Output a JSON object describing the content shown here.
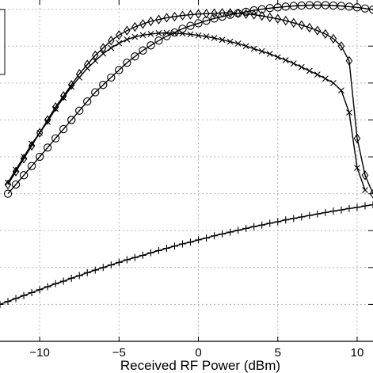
{
  "chart_data": {
    "type": "line",
    "xlabel": "Received RF Power (dBm)",
    "ylabel": "",
    "xlim": [
      -12.5,
      11
    ],
    "ylim": [
      0,
      9.25
    ],
    "x_ticks": [
      -10,
      -5,
      0,
      5,
      10
    ],
    "x_tick_labels": [
      "−10",
      "−5",
      "0",
      "5",
      "10"
    ],
    "y_gridlines": [
      1,
      2,
      3,
      4,
      5,
      6,
      7,
      8,
      9
    ],
    "grid": true,
    "legend_placement": "top-left",
    "series": [
      {
        "marker": "circle",
        "x": [
          -12,
          -11.5,
          -11,
          -10.5,
          -10,
          -9.5,
          -9,
          -8.5,
          -8,
          -7.5,
          -7,
          -6.5,
          -6,
          -5.5,
          -5,
          -4.5,
          -4,
          -3.5,
          -3,
          -2.5,
          -2,
          -1.5,
          -1,
          -0.5,
          0,
          0.5,
          1,
          1.5,
          2,
          2.5,
          3,
          3.5,
          4,
          4.5,
          5,
          5.5,
          6,
          6.5,
          7,
          7.5,
          8,
          8.5,
          9,
          9.5,
          10,
          10.5,
          11
        ],
        "values": [
          4.0,
          4.25,
          4.5,
          4.75,
          5.0,
          5.25,
          5.5,
          5.75,
          6.0,
          6.25,
          6.5,
          6.75,
          6.95,
          7.15,
          7.35,
          7.55,
          7.72,
          7.88,
          8.02,
          8.15,
          8.27,
          8.37,
          8.47,
          8.55,
          8.62,
          8.69,
          8.75,
          8.8,
          8.85,
          8.89,
          8.93,
          8.97,
          9.0,
          9.03,
          9.05,
          9.07,
          9.09,
          9.1,
          9.11,
          9.11,
          9.11,
          9.1,
          9.09,
          9.07,
          9.05,
          9.02,
          8.99
        ]
      },
      {
        "marker": "diamond",
        "x": [
          -12,
          -11.5,
          -11,
          -10.5,
          -10,
          -9.5,
          -9,
          -8.5,
          -8,
          -7.5,
          -7,
          -6.5,
          -6,
          -5.5,
          -5,
          -4.5,
          -4,
          -3.5,
          -3,
          -2.5,
          -2,
          -1.5,
          -1,
          -0.5,
          0,
          0.5,
          1,
          1.5,
          2,
          2.5,
          3,
          3.5,
          4,
          4.5,
          5,
          5.5,
          6,
          6.5,
          7,
          7.5,
          8,
          8.5,
          9,
          9.5,
          10,
          10.5,
          11
        ],
        "values": [
          4.25,
          4.6,
          4.95,
          5.3,
          5.65,
          6.0,
          6.35,
          6.65,
          6.95,
          7.25,
          7.5,
          7.75,
          7.95,
          8.15,
          8.3,
          8.42,
          8.52,
          8.6,
          8.67,
          8.72,
          8.77,
          8.8,
          8.83,
          8.85,
          8.87,
          8.88,
          8.89,
          8.9,
          8.9,
          8.89,
          8.87,
          8.85,
          8.82,
          8.78,
          8.74,
          8.69,
          8.63,
          8.57,
          8.5,
          8.42,
          8.33,
          8.2,
          8.0,
          7.6,
          5.5,
          4.5,
          4.0
        ]
      },
      {
        "marker": "x",
        "x": [
          -12,
          -11.5,
          -11,
          -10.5,
          -10,
          -9.5,
          -9,
          -8.5,
          -8,
          -7.5,
          -7,
          -6.5,
          -6,
          -5.5,
          -5,
          -4.5,
          -4,
          -3.5,
          -3,
          -2.5,
          -2,
          -1.5,
          -1,
          -0.5,
          0,
          0.5,
          1,
          1.5,
          2,
          2.5,
          3,
          3.5,
          4,
          4.5,
          5,
          5.5,
          6,
          6.5,
          7,
          7.5,
          8,
          8.5,
          9,
          9.5,
          10,
          10.5
        ],
        "values": [
          4.3,
          4.65,
          5.0,
          5.35,
          5.65,
          5.95,
          6.3,
          6.6,
          6.9,
          7.15,
          7.4,
          7.6,
          7.8,
          7.95,
          8.08,
          8.18,
          8.25,
          8.3,
          8.33,
          8.35,
          8.36,
          8.35,
          8.34,
          8.32,
          8.29,
          8.26,
          8.22,
          8.17,
          8.12,
          8.07,
          8.0,
          7.93,
          7.86,
          7.79,
          7.7,
          7.62,
          7.53,
          7.43,
          7.33,
          7.23,
          7.12,
          7.0,
          6.8,
          6.2,
          4.7,
          4.1
        ]
      },
      {
        "marker": "plus",
        "x": [
          -12.5,
          -12,
          -11.5,
          -11,
          -10.5,
          -10,
          -9.5,
          -9,
          -8.5,
          -8,
          -7.5,
          -7,
          -6.5,
          -6,
          -5.5,
          -5,
          -4.5,
          -4,
          -3.5,
          -3,
          -2.5,
          -2,
          -1.5,
          -1,
          -0.5,
          0,
          0.5,
          1,
          1.5,
          2,
          2.5,
          3,
          3.5,
          4,
          4.5,
          5,
          5.5,
          6,
          6.5,
          7,
          7.5,
          8,
          8.5,
          9,
          9.5,
          10,
          10.5,
          11
        ],
        "values": [
          1.0,
          1.08,
          1.16,
          1.24,
          1.32,
          1.4,
          1.48,
          1.56,
          1.63,
          1.71,
          1.78,
          1.86,
          1.93,
          2.0,
          2.07,
          2.14,
          2.21,
          2.27,
          2.33,
          2.4,
          2.46,
          2.52,
          2.58,
          2.64,
          2.69,
          2.75,
          2.8,
          2.86,
          2.91,
          2.96,
          3.01,
          3.06,
          3.11,
          3.15,
          3.2,
          3.24,
          3.29,
          3.33,
          3.37,
          3.41,
          3.45,
          3.49,
          3.53,
          3.56,
          3.6,
          3.63,
          3.67,
          3.7
        ]
      }
    ]
  }
}
